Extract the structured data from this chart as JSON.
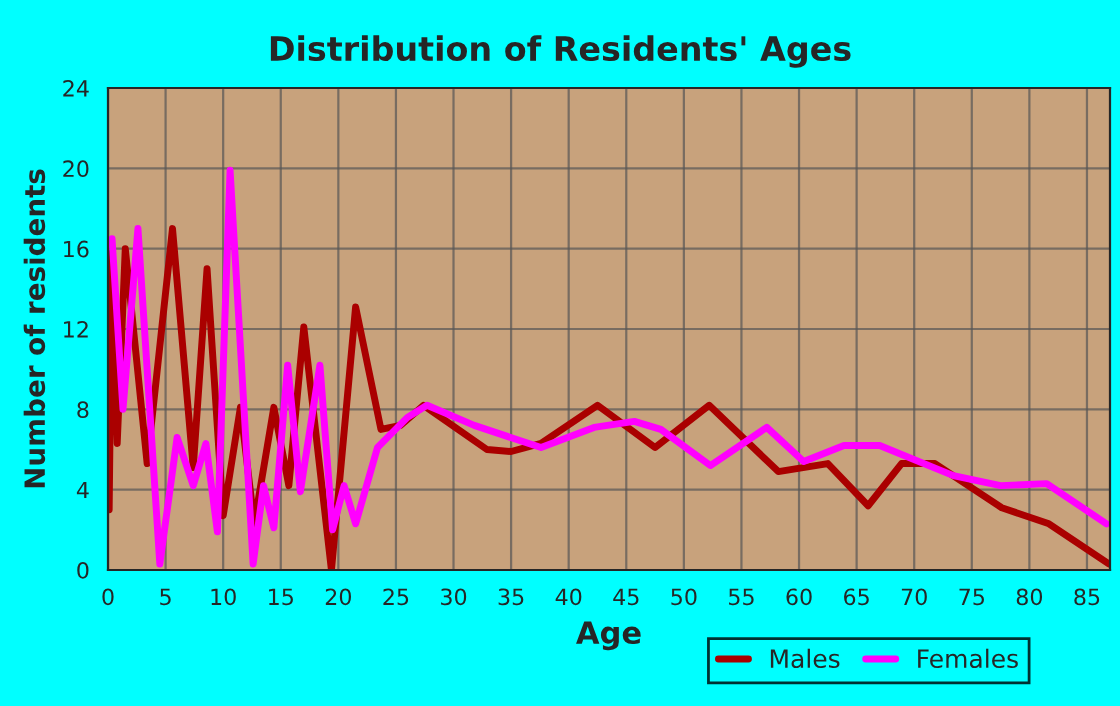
{
  "chart_data": {
    "type": "line",
    "title": "Distribution of Residents' Ages",
    "xlabel": "Age",
    "ylabel": "Number of residents",
    "xlim": [
      0,
      87
    ],
    "xticks": [
      0,
      5,
      10,
      15,
      20,
      25,
      30,
      35,
      40,
      45,
      50,
      55,
      60,
      65,
      70,
      75,
      80,
      85
    ],
    "ylim": [
      0,
      24
    ],
    "yticks": [
      0,
      4,
      8,
      12,
      16,
      20,
      24
    ],
    "grid": true,
    "legend": "bottom right",
    "marker": "none",
    "line_style": "solid",
    "series": [
      {
        "name": "Males",
        "color": "#aa0000",
        "x": [
          0.1,
          0.35,
          0.8,
          1.5,
          3.4,
          5.6,
          7.4,
          8.6,
          10,
          11.5,
          12.7,
          14.4,
          15.7,
          17,
          19.4,
          21.5,
          23.7,
          25.4,
          27.4,
          32.9,
          35,
          37.6,
          42.5,
          47.5,
          52.2,
          58.2,
          62.5,
          66,
          68.9,
          71.8,
          77.6,
          81.7,
          86.9
        ],
        "values": [
          3,
          15.8,
          6.3,
          16,
          5.3,
          17,
          5.1,
          15,
          2.7,
          8.1,
          2.3,
          8.1,
          4.2,
          12.1,
          0,
          13.1,
          7,
          7.2,
          8.2,
          6,
          5.9,
          6.3,
          8.2,
          6.1,
          8.2,
          4.9,
          5.3,
          3.2,
          5.3,
          5.3,
          3.1,
          2.3,
          0.3
        ]
      },
      {
        "name": "Females",
        "color": "#ff00ff",
        "x": [
          0.35,
          1.3,
          2.6,
          4.5,
          6,
          7.4,
          8.5,
          9.5,
          10.6,
          12.6,
          13.5,
          14.4,
          15.6,
          16.7,
          18.4,
          19.5,
          20.5,
          21.5,
          23.4,
          26,
          27.7,
          31.8,
          37.6,
          42.2,
          45.7,
          48,
          52.3,
          57.2,
          60.4,
          63.9,
          67,
          73.4,
          77.5,
          81.5,
          86.7
        ],
        "values": [
          16.5,
          8,
          17,
          0.3,
          6.6,
          4.2,
          6.3,
          1.9,
          19.9,
          0.3,
          4.2,
          2.1,
          10.2,
          3.9,
          10.2,
          2,
          4.2,
          2.3,
          6.1,
          7.6,
          8.2,
          7.2,
          6.1,
          7.1,
          7.4,
          7,
          5.2,
          7.1,
          5.4,
          6.2,
          6.2,
          4.7,
          4.2,
          4.3,
          2.3
        ]
      }
    ]
  }
}
